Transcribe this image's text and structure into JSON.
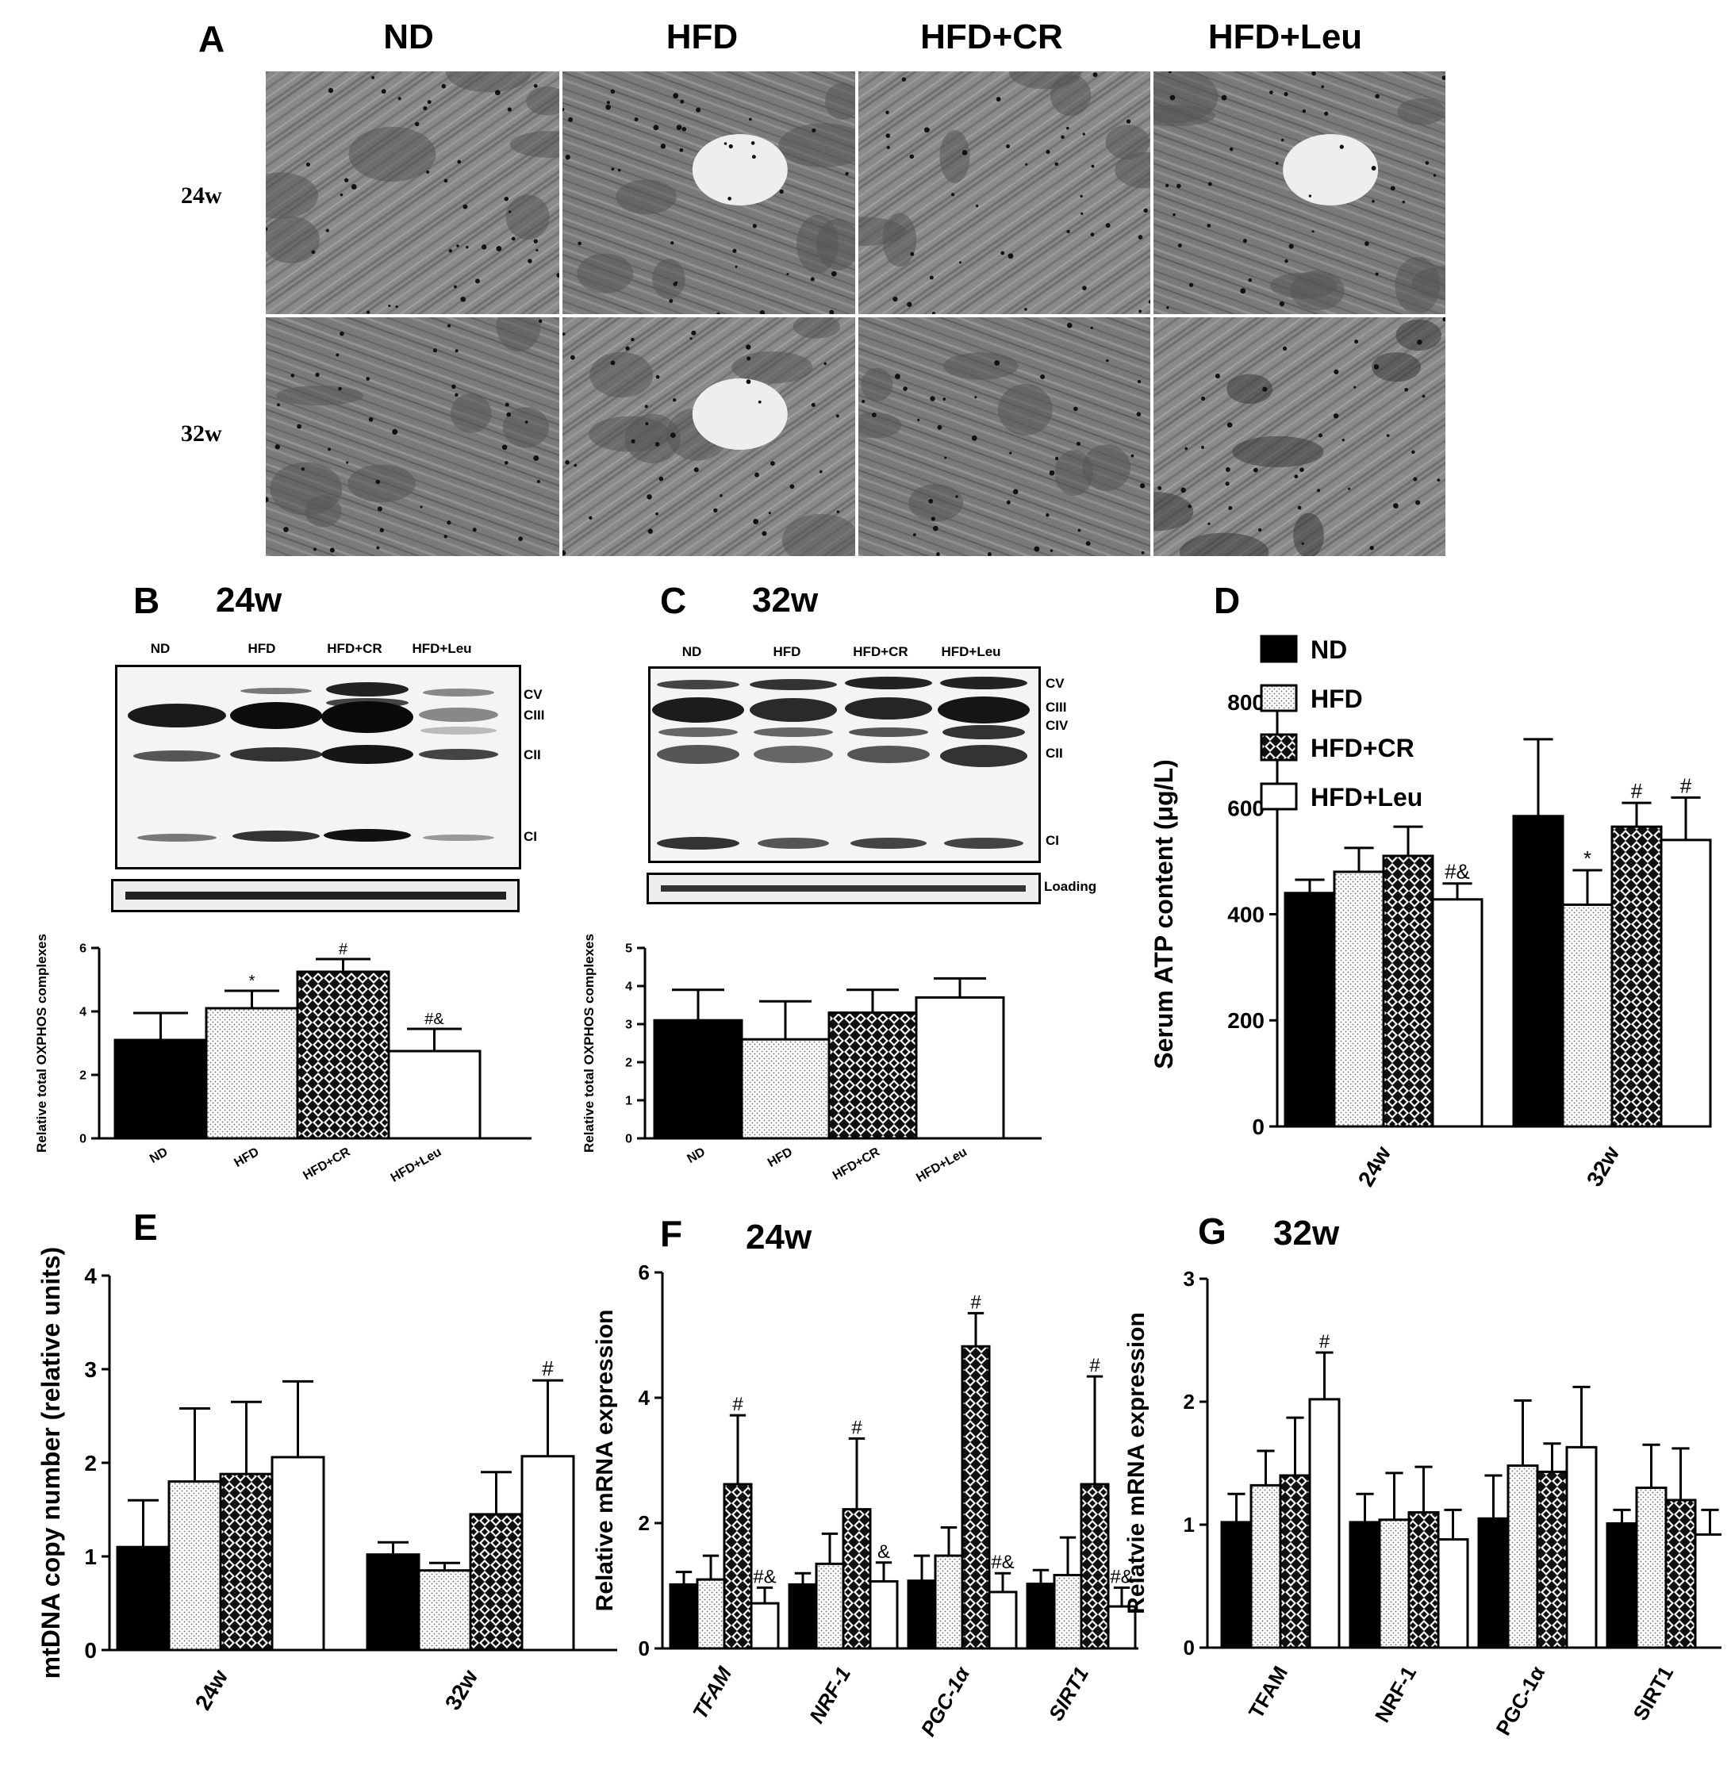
{
  "panelA": {
    "label": "A",
    "columns": [
      "ND",
      "HFD",
      "HFD+CR",
      "HFD+Leu"
    ],
    "rows": [
      "24w",
      "32w"
    ]
  },
  "panelB": {
    "label": "B",
    "title": "24w",
    "lanes": [
      "ND",
      "HFD",
      "HFD+CR",
      "HFD+Leu"
    ],
    "bands": [
      "CV",
      "CIII",
      "CII",
      "CI"
    ]
  },
  "panelC": {
    "label": "C",
    "title": "32w",
    "lanes": [
      "ND",
      "HFD",
      "HFD+CR",
      "HFD+Leu"
    ],
    "bands": [
      "CV",
      "CIII",
      "CIV",
      "CII",
      "CI"
    ],
    "loading_label": "Loading"
  },
  "panelD": {
    "label": "D"
  },
  "panelE": {
    "label": "E"
  },
  "panelF": {
    "label": "F",
    "title": "24w"
  },
  "panelG": {
    "label": "G",
    "title": "32w"
  },
  "chart_data": [
    {
      "id": "B",
      "type": "bar",
      "ylabel": "Relative total OXPHOS complexes",
      "categories": [
        "ND",
        "HFD",
        "HFD+CR",
        "HFD+Leu"
      ],
      "ylim": [
        0,
        6
      ],
      "yticks": [
        0,
        2,
        4,
        6
      ],
      "series": [
        {
          "values": [
            3.1,
            4.1,
            5.25,
            2.75
          ],
          "errors": [
            0.85,
            0.55,
            0.4,
            0.7
          ],
          "annotations": [
            "",
            "*",
            "#",
            "#&"
          ]
        }
      ]
    },
    {
      "id": "C",
      "type": "bar",
      "ylabel": "Relative total OXPHOS complexes",
      "categories": [
        "ND",
        "HFD",
        "HFD+CR",
        "HFD+Leu"
      ],
      "ylim": [
        0,
        5
      ],
      "yticks": [
        0,
        1,
        2,
        3,
        4,
        5
      ],
      "series": [
        {
          "values": [
            3.1,
            2.6,
            3.3,
            3.7
          ],
          "errors": [
            0.8,
            1.0,
            0.6,
            0.5
          ],
          "annotations": [
            "",
            "",
            "",
            ""
          ]
        }
      ]
    },
    {
      "id": "D",
      "type": "bar",
      "ylabel": "Serum ATP content (μg/L)",
      "categories": [
        "24w",
        "32w"
      ],
      "ylim": [
        0,
        800
      ],
      "yticks": [
        0,
        200,
        400,
        600,
        800
      ],
      "legend": "top-left",
      "series": [
        {
          "name": "ND",
          "values": [
            440,
            585
          ],
          "errors": [
            25,
            145
          ],
          "annotations": [
            "",
            ""
          ]
        },
        {
          "name": "HFD",
          "values": [
            480,
            418
          ],
          "errors": [
            45,
            65
          ],
          "annotations": [
            "",
            "*"
          ]
        },
        {
          "name": "HFD+CR",
          "values": [
            510,
            565
          ],
          "errors": [
            55,
            45
          ],
          "annotations": [
            "",
            "#"
          ]
        },
        {
          "name": "HFD+Leu",
          "values": [
            428,
            540
          ],
          "errors": [
            30,
            80
          ],
          "annotations": [
            "#&",
            "#"
          ]
        }
      ]
    },
    {
      "id": "E",
      "type": "bar",
      "ylabel": "mtDNA copy number (relative units)",
      "categories": [
        "24w",
        "32w"
      ],
      "ylim": [
        0,
        4
      ],
      "yticks": [
        0,
        1,
        2,
        3,
        4
      ],
      "series": [
        {
          "name": "ND",
          "values": [
            1.1,
            1.02
          ],
          "errors": [
            0.5,
            0.13
          ],
          "annotations": [
            "",
            ""
          ]
        },
        {
          "name": "HFD",
          "values": [
            1.8,
            0.85
          ],
          "errors": [
            0.78,
            0.08
          ],
          "annotations": [
            "",
            ""
          ]
        },
        {
          "name": "HFD+CR",
          "values": [
            1.88,
            1.45
          ],
          "errors": [
            0.77,
            0.45
          ],
          "annotations": [
            "",
            ""
          ]
        },
        {
          "name": "HFD+Leu",
          "values": [
            2.06,
            2.07
          ],
          "errors": [
            0.81,
            0.81
          ],
          "annotations": [
            "",
            "#"
          ]
        }
      ]
    },
    {
      "id": "F",
      "type": "bar",
      "ylabel": "Relative mRNA expression",
      "categories": [
        "TFAM",
        "NRF-1",
        "PGC-1α",
        "SIRT1"
      ],
      "ylim": [
        0,
        6
      ],
      "yticks": [
        0,
        2,
        4,
        6
      ],
      "series": [
        {
          "name": "ND",
          "values": [
            1.02,
            1.02,
            1.08,
            1.03
          ],
          "errors": [
            0.2,
            0.18,
            0.4,
            0.22
          ],
          "annotations": [
            "",
            "",
            "",
            ""
          ]
        },
        {
          "name": "HFD",
          "values": [
            1.1,
            1.35,
            1.48,
            1.17
          ],
          "errors": [
            0.38,
            0.48,
            0.45,
            0.6
          ],
          "annotations": [
            "",
            "",
            "",
            ""
          ]
        },
        {
          "name": "HFD+CR",
          "values": [
            2.62,
            2.22,
            4.82,
            2.62
          ],
          "errors": [
            1.1,
            1.13,
            0.53,
            1.72
          ],
          "annotations": [
            "#",
            "#",
            "#",
            "#"
          ]
        },
        {
          "name": "HFD+Leu",
          "values": [
            0.72,
            1.07,
            0.9,
            0.67
          ],
          "errors": [
            0.25,
            0.3,
            0.3,
            0.3
          ],
          "annotations": [
            "#&",
            "&",
            "#&",
            "#&"
          ]
        }
      ]
    },
    {
      "id": "G",
      "type": "bar",
      "ylabel": "Relatvie mRNA expression",
      "categories": [
        "TFAM",
        "NRF-1",
        "PGC-1α",
        "SIRT1"
      ],
      "ylim": [
        0,
        3
      ],
      "yticks": [
        0,
        1,
        2,
        3
      ],
      "series": [
        {
          "name": "ND",
          "values": [
            1.02,
            1.02,
            1.05,
            1.01
          ],
          "errors": [
            0.23,
            0.23,
            0.35,
            0.11
          ],
          "annotations": [
            "",
            "",
            "",
            ""
          ]
        },
        {
          "name": "HFD",
          "values": [
            1.32,
            1.04,
            1.48,
            1.3
          ],
          "errors": [
            0.28,
            0.38,
            0.53,
            0.35
          ],
          "annotations": [
            "",
            "",
            "",
            ""
          ]
        },
        {
          "name": "HFD+CR",
          "values": [
            1.4,
            1.1,
            1.43,
            1.2
          ],
          "errors": [
            0.47,
            0.37,
            0.23,
            0.42
          ],
          "annotations": [
            "",
            "",
            "",
            ""
          ]
        },
        {
          "name": "HFD+Leu",
          "values": [
            2.02,
            0.88,
            1.63,
            0.92
          ],
          "errors": [
            0.38,
            0.24,
            0.49,
            0.2
          ],
          "annotations": [
            "#",
            "",
            "",
            ""
          ]
        }
      ]
    }
  ]
}
